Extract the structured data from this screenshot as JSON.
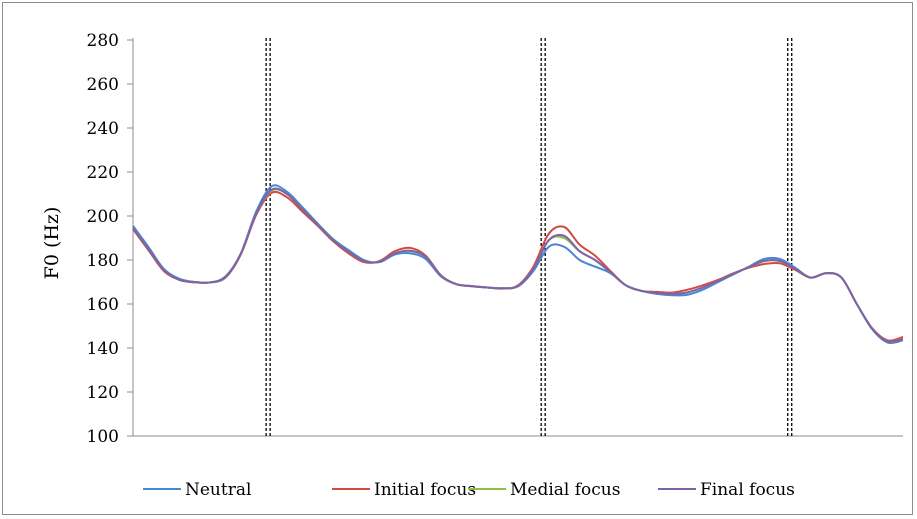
{
  "chart_data": {
    "type": "line",
    "title": "",
    "xlabel": "",
    "ylabel": "F0 (Hz)",
    "ylim": [
      100,
      280
    ],
    "yticks": [
      "100",
      "120",
      "140",
      "160",
      "180",
      "200",
      "220",
      "240",
      "260",
      "280"
    ],
    "grid": false,
    "legend_position": "bottom",
    "boundaries_x": [
      0.1755,
      0.5327,
      0.8529
    ],
    "x": [
      0,
      0.02,
      0.04,
      0.06,
      0.08,
      0.1,
      0.12,
      0.14,
      0.16,
      0.18,
      0.2,
      0.22,
      0.24,
      0.26,
      0.28,
      0.3,
      0.32,
      0.34,
      0.36,
      0.38,
      0.4,
      0.42,
      0.44,
      0.46,
      0.48,
      0.5,
      0.52,
      0.54,
      0.56,
      0.58,
      0.6,
      0.62,
      0.64,
      0.66,
      0.68,
      0.7,
      0.72,
      0.74,
      0.76,
      0.78,
      0.8,
      0.82,
      0.84,
      0.86,
      0.88,
      0.9,
      0.92,
      0.94,
      0.96,
      0.98,
      1
    ],
    "series": [
      {
        "name": "Neutral",
        "color": "#4a86d6",
        "values": [
          195.5,
          186,
          176,
          171.5,
          170,
          169.8,
          172.5,
          183,
          202,
          213.5,
          211,
          204,
          196.5,
          189.5,
          184.5,
          180,
          179,
          182.5,
          183,
          180.5,
          172.5,
          169,
          168.2,
          167.5,
          167.2,
          168,
          175,
          186,
          186,
          180,
          177,
          174,
          168.5,
          166,
          164.6,
          164,
          164.2,
          166.5,
          170,
          173.5,
          177,
          180.5,
          180.5,
          176.5,
          172,
          174,
          172,
          160,
          148.5,
          142.5,
          143.5
        ]
      },
      {
        "name": "Initial focus",
        "color": "#d24b43",
        "values": [
          194,
          184.5,
          175,
          171,
          169.8,
          169.8,
          172,
          182.5,
          200.5,
          210.5,
          208.5,
          202,
          195.5,
          188.5,
          183,
          179,
          179.5,
          184,
          185.5,
          182,
          173,
          169,
          168,
          167.5,
          167,
          168.5,
          177,
          192,
          195,
          187,
          182,
          175,
          168.5,
          166,
          165.5,
          165.2,
          166.5,
          168.5,
          171,
          174,
          176.5,
          178.2,
          178.5,
          175.5,
          172,
          174,
          172,
          160,
          149,
          143.5,
          145
        ]
      },
      {
        "name": "Medial focus",
        "color": "#8fbf45",
        "values": [
          194.5,
          185,
          175.5,
          171,
          170,
          169.8,
          172.2,
          182.8,
          201,
          211.5,
          210,
          203,
          196,
          189,
          183.8,
          179.5,
          179.2,
          183,
          184,
          181.5,
          172.8,
          169,
          168.1,
          167.5,
          167.1,
          168.2,
          176,
          189,
          190,
          184,
          180,
          174.5,
          168.5,
          166,
          165,
          164.6,
          165.3,
          167.5,
          170.5,
          173.8,
          176.8,
          179.5,
          179.5,
          176,
          172,
          174,
          172,
          160,
          148.8,
          143,
          144
        ]
      },
      {
        "name": "Final focus",
        "color": "#7b62aa",
        "values": [
          194.5,
          185,
          175.5,
          171,
          170,
          169.8,
          172.2,
          182.8,
          201,
          212,
          210,
          203,
          196,
          189,
          183.8,
          179.5,
          179.2,
          183,
          184.2,
          181.5,
          172.8,
          169,
          168.1,
          167.5,
          167.1,
          168.2,
          176,
          189,
          191,
          184,
          180,
          174.5,
          168.5,
          166,
          165,
          164.6,
          165.3,
          167.5,
          170.5,
          173.8,
          176.8,
          179.6,
          179.6,
          176,
          172,
          174,
          172,
          160,
          148.8,
          143,
          144
        ]
      }
    ]
  }
}
